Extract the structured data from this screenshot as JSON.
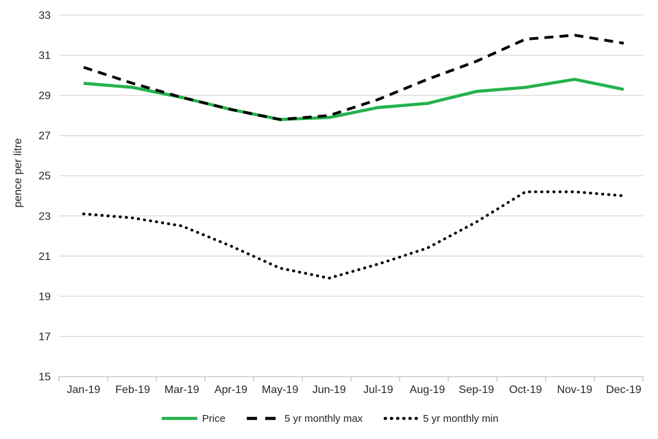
{
  "chart_data": {
    "type": "line",
    "title": "",
    "xlabel": "",
    "ylabel": "pence per litre",
    "ylim": [
      15,
      33
    ],
    "yticks": [
      15,
      17,
      19,
      21,
      23,
      25,
      27,
      29,
      31,
      33
    ],
    "grid": true,
    "legend_position": "bottom",
    "categories": [
      "Jan-19",
      "Feb-19",
      "Mar-19",
      "Apr-19",
      "May-19",
      "Jun-19",
      "Jul-19",
      "Aug-19",
      "Sep-19",
      "Oct-19",
      "Nov-19",
      "Dec-19"
    ],
    "series": [
      {
        "name": "Price",
        "style": "solid",
        "color": "#22B24C",
        "values": [
          29.6,
          29.4,
          28.9,
          28.3,
          27.8,
          27.9,
          28.4,
          28.6,
          29.2,
          29.4,
          29.8,
          29.3
        ]
      },
      {
        "name": "5 yr monthly max",
        "style": "dashed",
        "color": "#000000",
        "values": [
          30.4,
          29.6,
          28.9,
          28.3,
          27.8,
          28.0,
          28.8,
          29.8,
          30.7,
          31.8,
          32.0,
          31.6
        ]
      },
      {
        "name": "5 yr monthly min",
        "style": "dotted",
        "color": "#000000",
        "values": [
          23.1,
          22.9,
          22.5,
          21.5,
          20.4,
          19.9,
          20.6,
          21.4,
          22.7,
          24.2,
          24.2,
          24.0
        ]
      }
    ]
  },
  "colors": {
    "gridline": "#d9d9d9",
    "axis": "#bfbfbf",
    "text": "#262626",
    "accent_green": "#22B24C"
  }
}
